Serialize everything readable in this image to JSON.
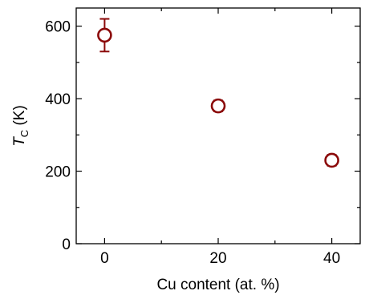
{
  "chart_data": {
    "type": "scatter",
    "title": "",
    "xlabel": "Cu content (at. %)",
    "ylabel": {
      "main": "T",
      "subscript": "C",
      "unit": " (K)"
    },
    "xlim": [
      -5,
      45
    ],
    "ylim": [
      0,
      650
    ],
    "x_ticks": [
      0,
      20,
      40
    ],
    "x_minor_ticks": [
      10,
      30
    ],
    "y_ticks": [
      0,
      200,
      400,
      600
    ],
    "y_minor_ticks": [
      100,
      300,
      500
    ],
    "marker": "open-circle",
    "color": "#8b0a0a",
    "grid": false,
    "legend": "none",
    "series": [
      {
        "x": [
          0,
          20,
          40
        ],
        "y": [
          575,
          380,
          230
        ],
        "yerr": [
          45,
          15,
          15
        ]
      }
    ]
  }
}
